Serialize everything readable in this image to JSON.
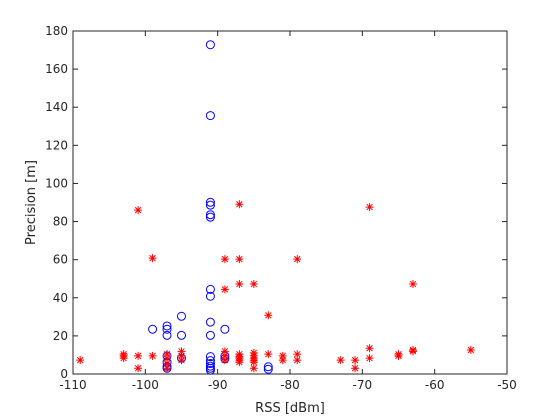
{
  "chart_data": {
    "type": "scatter",
    "title": "",
    "xlabel": "RSS [dBm]",
    "ylabel": "Precision [m]",
    "xlim": [
      -110,
      -50
    ],
    "ylim": [
      0,
      180
    ],
    "xticks": [
      -110,
      -100,
      -90,
      -80,
      -70,
      -60,
      -50
    ],
    "yticks": [
      0,
      20,
      40,
      60,
      80,
      100,
      120,
      140,
      160,
      180
    ],
    "grid": false,
    "legend": "none",
    "series": [
      {
        "marker": "circle",
        "color": "#0000ff",
        "points": [
          [
            -91,
            172.8
          ],
          [
            -91,
            135.6
          ],
          [
            -91,
            90.1
          ],
          [
            -91,
            88.6
          ],
          [
            -91,
            83.6
          ],
          [
            -91,
            82.3
          ],
          [
            -91,
            44.4
          ],
          [
            -91,
            40.8
          ],
          [
            -91,
            27.2
          ],
          [
            -91,
            20.3
          ],
          [
            -91,
            9.1
          ],
          [
            -91,
            7.0
          ],
          [
            -91,
            5.5
          ],
          [
            -91,
            4.1
          ],
          [
            -91,
            3.0
          ],
          [
            -91,
            2.0
          ],
          [
            -99,
            23.5
          ],
          [
            -97,
            25.2
          ],
          [
            -97,
            23.5
          ],
          [
            -97,
            20.3
          ],
          [
            -95,
            30.3
          ],
          [
            -95,
            20.3
          ],
          [
            -97,
            9.5
          ],
          [
            -97,
            6.2
          ],
          [
            -97,
            4.0
          ],
          [
            -97,
            3.0
          ],
          [
            -95,
            8.3
          ],
          [
            -89,
            23.5
          ],
          [
            -89,
            9.5
          ],
          [
            -89,
            8.0
          ],
          [
            -83,
            3.8
          ],
          [
            -83,
            2.5
          ]
        ]
      },
      {
        "marker": "asterisk",
        "color": "#ff0000",
        "points": [
          [
            -109,
            7.3
          ],
          [
            -103,
            10.4
          ],
          [
            -103,
            9.5
          ],
          [
            -103,
            8.3
          ],
          [
            -101,
            86.0
          ],
          [
            -101,
            9.5
          ],
          [
            -101,
            3.0
          ],
          [
            -99,
            60.8
          ],
          [
            -99,
            9.5
          ],
          [
            -97,
            10.4
          ],
          [
            -97,
            8.3
          ],
          [
            -97,
            5.5
          ],
          [
            -97,
            3.0
          ],
          [
            -95,
            11.9
          ],
          [
            -95,
            9.5
          ],
          [
            -95,
            7.3
          ],
          [
            -89,
            60.3
          ],
          [
            -89,
            44.4
          ],
          [
            -89,
            11.9
          ],
          [
            -89,
            9.5
          ],
          [
            -89,
            7.3
          ],
          [
            -87,
            89.1
          ],
          [
            -87,
            60.3
          ],
          [
            -87,
            47.2
          ],
          [
            -87,
            10.4
          ],
          [
            -87,
            9.1
          ],
          [
            -87,
            8.3
          ],
          [
            -87,
            7.3
          ],
          [
            -87,
            6.2
          ],
          [
            -85,
            47.2
          ],
          [
            -85,
            11.1
          ],
          [
            -85,
            9.5
          ],
          [
            -85,
            8.3
          ],
          [
            -85,
            7.3
          ],
          [
            -85,
            6.2
          ],
          [
            -85,
            3.0
          ],
          [
            -83,
            30.8
          ],
          [
            -83,
            10.4
          ],
          [
            -81,
            9.5
          ],
          [
            -81,
            7.3
          ],
          [
            -79,
            60.3
          ],
          [
            -79,
            10.4
          ],
          [
            -79,
            7.3
          ],
          [
            -73,
            7.3
          ],
          [
            -71,
            7.3
          ],
          [
            -71,
            3.0
          ],
          [
            -69,
            87.6
          ],
          [
            -69,
            13.5
          ],
          [
            -69,
            8.3
          ],
          [
            -65,
            10.4
          ],
          [
            -65,
            9.5
          ],
          [
            -63,
            47.2
          ],
          [
            -63,
            12.6
          ],
          [
            -63,
            11.9
          ],
          [
            -55,
            12.6
          ]
        ]
      }
    ]
  }
}
